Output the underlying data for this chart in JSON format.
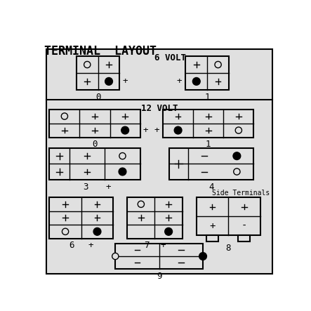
{
  "title": "TERMINAL  LAYOUT",
  "bg_color": "#e0e0e0",
  "outer_bg": "#ffffff",
  "font_family": "monospace",
  "6volt_label": "6 VOLT",
  "12volt_label": "12 VOLT",
  "side_terminal_label": "Side Terminals"
}
